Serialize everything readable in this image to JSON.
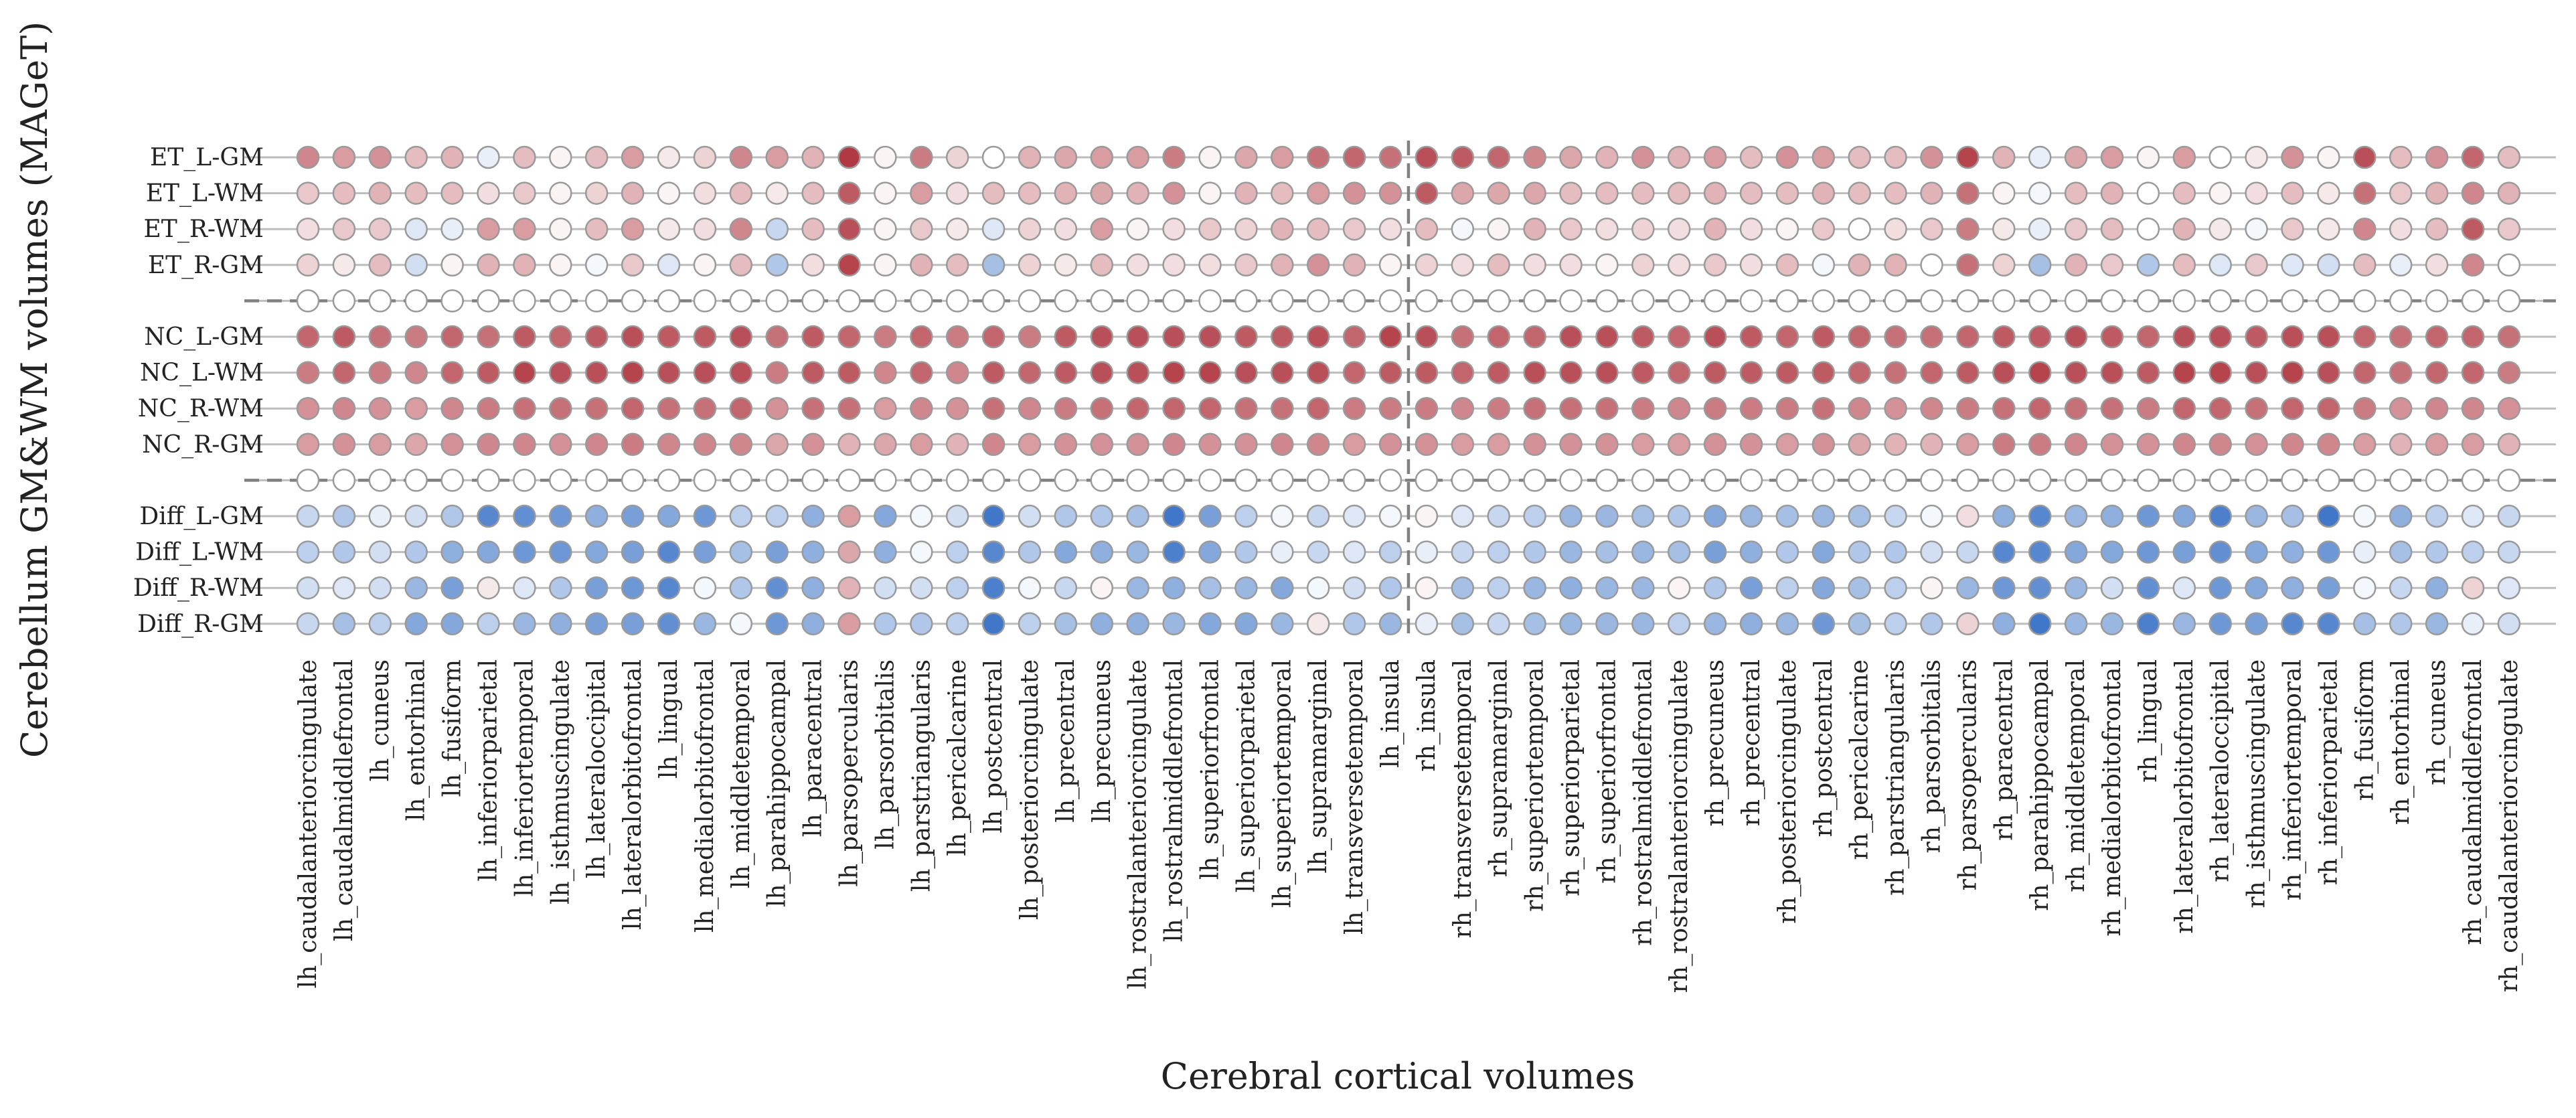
{
  "chart_data": {
    "type": "dot-matrix",
    "xlabel": "Cerebral cortical volumes",
    "ylabel": "Cerebellum GM&WM volumes (MAGeT)",
    "value_range": [
      -1,
      1
    ],
    "colormap": "diverging blue-white-red",
    "colors": {
      "negative": "#1f5fbf",
      "zero": "#ffffff",
      "positive": "#a8232e"
    },
    "columns": [
      "lh_caudalanteriorcingulate",
      "lh_caudalmiddlefrontal",
      "lh_cuneus",
      "lh_entorhinal",
      "lh_fusiform",
      "lh_inferiorparietal",
      "lh_inferiortemporal",
      "lh_isthmuscingulate",
      "lh_lateraloccipital",
      "lh_lateralorbitofrontal",
      "lh_lingual",
      "lh_medialorbitofrontal",
      "lh_middletemporal",
      "lh_parahippocampal",
      "lh_paracentral",
      "lh_parsopercularis",
      "lh_parsorbitalis",
      "lh_parstriangularis",
      "lh_pericalcarine",
      "lh_postcentral",
      "lh_posteriorcingulate",
      "lh_precentral",
      "lh_precuneus",
      "lh_rostralanteriorcingulate",
      "lh_rostralmiddlefrontal",
      "lh_superiorfrontal",
      "lh_superiorparietal",
      "lh_superiortemporal",
      "lh_supramarginal",
      "lh_transversetemporal",
      "lh_insula",
      "rh_insula",
      "rh_transversetemporal",
      "rh_supramarginal",
      "rh_superiortemporal",
      "rh_superiorparietal",
      "rh_superiorfrontal",
      "rh_rostralmiddlefrontal",
      "rh_rostralanteriorcingulate",
      "rh_precuneus",
      "rh_precentral",
      "rh_posteriorcingulate",
      "rh_postcentral",
      "rh_pericalcarine",
      "rh_parstriangularis",
      "rh_parsorbitalis",
      "rh_parsopercularis",
      "rh_paracentral",
      "rh_parahippocampal",
      "rh_middletemporal",
      "rh_medialorbitofrontal",
      "rh_lingual",
      "rh_lateralorbitofrontal",
      "rh_lateraloccipital",
      "rh_isthmuscingulate",
      "rh_inferiortemporal",
      "rh_inferiorparietal",
      "rh_fusiform",
      "rh_entorhinal",
      "rh_cuneus",
      "rh_caudalmiddlefrontal",
      "rh_caudalanteriorcingulate"
    ],
    "rows": [
      {
        "label": "ET_L-GM",
        "values": [
          0.55,
          0.45,
          0.5,
          0.3,
          0.35,
          -0.1,
          0.3,
          0.05,
          0.3,
          0.45,
          0.1,
          0.2,
          0.55,
          0.45,
          0.35,
          0.9,
          0.05,
          0.6,
          0.2,
          0.0,
          0.35,
          0.4,
          0.45,
          0.45,
          0.6,
          0.05,
          0.4,
          0.45,
          0.65,
          0.7,
          0.65,
          0.8,
          0.75,
          0.7,
          0.55,
          0.4,
          0.35,
          0.5,
          0.35,
          0.45,
          0.3,
          0.5,
          0.45,
          0.3,
          0.3,
          0.5,
          0.85,
          0.35,
          -0.1,
          0.4,
          0.45,
          0.05,
          0.45,
          0.0,
          0.1,
          0.5,
          0.05,
          0.8,
          0.3,
          0.5,
          0.7,
          0.3
        ]
      },
      {
        "label": "ET_L-WM",
        "values": [
          0.25,
          0.3,
          0.35,
          0.3,
          0.3,
          0.15,
          0.25,
          0.05,
          0.2,
          0.35,
          0.05,
          0.15,
          0.3,
          0.1,
          0.3,
          0.75,
          0.05,
          0.45,
          0.15,
          0.3,
          0.3,
          0.35,
          0.4,
          0.35,
          0.5,
          0.05,
          0.35,
          0.3,
          0.45,
          0.5,
          0.5,
          0.75,
          0.4,
          0.4,
          0.4,
          0.3,
          0.3,
          0.3,
          0.3,
          0.35,
          0.3,
          0.3,
          0.35,
          0.3,
          0.3,
          0.35,
          0.65,
          0.05,
          -0.05,
          0.3,
          0.35,
          0.0,
          0.3,
          0.05,
          0.15,
          0.3,
          0.1,
          0.65,
          0.25,
          0.35,
          0.55,
          0.35
        ]
      },
      {
        "label": "ET_R-WM",
        "values": [
          0.15,
          0.25,
          0.25,
          -0.15,
          -0.1,
          0.45,
          0.45,
          0.05,
          0.3,
          0.45,
          0.1,
          0.15,
          0.55,
          -0.25,
          0.3,
          0.8,
          0.05,
          0.25,
          0.1,
          -0.15,
          0.2,
          0.15,
          0.45,
          0.05,
          0.15,
          0.25,
          0.2,
          0.35,
          0.3,
          0.25,
          0.15,
          0.3,
          -0.05,
          0.05,
          0.35,
          0.25,
          0.15,
          0.2,
          0.15,
          0.35,
          0.15,
          0.05,
          0.25,
          0.0,
          0.15,
          0.25,
          0.6,
          0.1,
          -0.1,
          0.25,
          0.3,
          0.0,
          0.35,
          0.1,
          -0.05,
          0.25,
          0.1,
          0.55,
          0.15,
          0.3,
          0.75,
          0.25
        ]
      },
      {
        "label": "ET_R-GM",
        "values": [
          0.2,
          0.1,
          0.3,
          -0.2,
          0.05,
          0.35,
          0.35,
          0.05,
          -0.05,
          0.25,
          -0.15,
          0.05,
          0.3,
          -0.35,
          0.15,
          0.85,
          0.05,
          0.35,
          0.3,
          -0.4,
          0.2,
          0.1,
          0.3,
          0.15,
          0.15,
          0.15,
          0.25,
          0.35,
          0.5,
          0.35,
          0.05,
          0.2,
          0.15,
          0.3,
          0.15,
          0.15,
          0.05,
          0.2,
          0.15,
          0.25,
          0.15,
          0.3,
          -0.05,
          0.35,
          0.35,
          0.0,
          0.65,
          0.2,
          -0.4,
          0.35,
          0.25,
          -0.35,
          0.3,
          -0.15,
          0.25,
          -0.15,
          -0.2,
          0.3,
          -0.1,
          0.15,
          0.55,
          0.0
        ]
      },
      {
        "label": "",
        "values": [
          0,
          0,
          0,
          0,
          0,
          0,
          0,
          0,
          0,
          0,
          0,
          0,
          0,
          0,
          0,
          0,
          0,
          0,
          0,
          0,
          0,
          0,
          0,
          0,
          0,
          0,
          0,
          0,
          0,
          0,
          0,
          0,
          0,
          0,
          0,
          0,
          0,
          0,
          0,
          0,
          0,
          0,
          0,
          0,
          0,
          0,
          0,
          0,
          0,
          0,
          0,
          0,
          0,
          0,
          0,
          0,
          0,
          0,
          0,
          0,
          0,
          0
        ]
      },
      {
        "label": "NC_L-GM",
        "values": [
          0.7,
          0.75,
          0.65,
          0.6,
          0.7,
          0.65,
          0.75,
          0.7,
          0.75,
          0.8,
          0.75,
          0.75,
          0.8,
          0.65,
          0.75,
          0.7,
          0.6,
          0.7,
          0.6,
          0.7,
          0.6,
          0.75,
          0.8,
          0.8,
          0.8,
          0.8,
          0.75,
          0.75,
          0.8,
          0.7,
          0.85,
          0.8,
          0.65,
          0.7,
          0.7,
          0.8,
          0.8,
          0.75,
          0.7,
          0.8,
          0.75,
          0.7,
          0.75,
          0.7,
          0.65,
          0.65,
          0.7,
          0.75,
          0.75,
          0.8,
          0.75,
          0.7,
          0.8,
          0.8,
          0.75,
          0.8,
          0.8,
          0.7,
          0.65,
          0.7,
          0.7,
          0.65
        ]
      },
      {
        "label": "NC_L-WM",
        "values": [
          0.6,
          0.7,
          0.6,
          0.55,
          0.7,
          0.75,
          0.85,
          0.8,
          0.8,
          0.85,
          0.8,
          0.8,
          0.8,
          0.6,
          0.75,
          0.75,
          0.55,
          0.7,
          0.55,
          0.75,
          0.7,
          0.75,
          0.8,
          0.8,
          0.85,
          0.85,
          0.8,
          0.8,
          0.8,
          0.7,
          0.75,
          0.75,
          0.7,
          0.75,
          0.8,
          0.8,
          0.8,
          0.75,
          0.7,
          0.75,
          0.75,
          0.75,
          0.75,
          0.7,
          0.65,
          0.7,
          0.75,
          0.8,
          0.85,
          0.8,
          0.8,
          0.75,
          0.85,
          0.85,
          0.8,
          0.85,
          0.8,
          0.7,
          0.65,
          0.7,
          0.7,
          0.6
        ]
      },
      {
        "label": "NC_R-WM",
        "values": [
          0.5,
          0.55,
          0.5,
          0.45,
          0.55,
          0.6,
          0.65,
          0.65,
          0.65,
          0.7,
          0.65,
          0.65,
          0.7,
          0.5,
          0.65,
          0.65,
          0.45,
          0.55,
          0.5,
          0.65,
          0.55,
          0.6,
          0.65,
          0.7,
          0.7,
          0.7,
          0.65,
          0.65,
          0.7,
          0.6,
          0.6,
          0.6,
          0.55,
          0.6,
          0.65,
          0.65,
          0.65,
          0.6,
          0.55,
          0.6,
          0.6,
          0.6,
          0.65,
          0.55,
          0.5,
          0.55,
          0.6,
          0.65,
          0.7,
          0.65,
          0.65,
          0.6,
          0.7,
          0.7,
          0.65,
          0.7,
          0.7,
          0.6,
          0.5,
          0.55,
          0.55,
          0.5
        ]
      },
      {
        "label": "NC_R-GM",
        "values": [
          0.45,
          0.5,
          0.45,
          0.4,
          0.5,
          0.55,
          0.55,
          0.5,
          0.55,
          0.6,
          0.55,
          0.55,
          0.55,
          0.4,
          0.5,
          0.35,
          0.4,
          0.45,
          0.35,
          0.55,
          0.45,
          0.5,
          0.5,
          0.5,
          0.55,
          0.5,
          0.5,
          0.55,
          0.55,
          0.45,
          0.5,
          0.5,
          0.45,
          0.45,
          0.5,
          0.5,
          0.5,
          0.45,
          0.45,
          0.5,
          0.5,
          0.45,
          0.5,
          0.4,
          0.35,
          0.35,
          0.45,
          0.6,
          0.6,
          0.55,
          0.5,
          0.5,
          0.55,
          0.55,
          0.5,
          0.55,
          0.55,
          0.45,
          0.35,
          0.45,
          0.45,
          0.35
        ]
      },
      {
        "label": "",
        "values": [
          0,
          0,
          0,
          0,
          0,
          0,
          0,
          0,
          0,
          0,
          0,
          0,
          0,
          0,
          0,
          0,
          0,
          0,
          0,
          0,
          0,
          0,
          0,
          0,
          0,
          0,
          0,
          0,
          0,
          0,
          0,
          0,
          0,
          0,
          0,
          0,
          0,
          0,
          0,
          0,
          0,
          0,
          0,
          0,
          0,
          0,
          0,
          0,
          0,
          0,
          0,
          0,
          0,
          0,
          0,
          0,
          0,
          0,
          0,
          0,
          0,
          0
        ]
      },
      {
        "label": "Diff_L-GM",
        "values": [
          -0.25,
          -0.35,
          -0.1,
          -0.2,
          -0.35,
          -0.75,
          -0.7,
          -0.65,
          -0.5,
          -0.6,
          -0.55,
          -0.65,
          -0.3,
          -0.3,
          -0.5,
          0.45,
          -0.55,
          -0.05,
          -0.2,
          -0.85,
          -0.2,
          -0.35,
          -0.35,
          -0.4,
          -0.85,
          -0.6,
          -0.3,
          -0.05,
          -0.25,
          -0.15,
          -0.05,
          0.05,
          -0.15,
          -0.25,
          -0.3,
          -0.45,
          -0.45,
          -0.4,
          -0.35,
          -0.55,
          -0.45,
          -0.4,
          -0.45,
          -0.4,
          -0.25,
          -0.05,
          0.15,
          -0.5,
          -0.75,
          -0.45,
          -0.5,
          -0.65,
          -0.55,
          -0.8,
          -0.45,
          -0.4,
          -0.85,
          -0.05,
          -0.5,
          -0.3,
          -0.15,
          -0.25
        ]
      },
      {
        "label": "Diff_L-WM",
        "values": [
          -0.3,
          -0.35,
          -0.2,
          -0.35,
          -0.5,
          -0.55,
          -0.65,
          -0.65,
          -0.55,
          -0.6,
          -0.75,
          -0.6,
          -0.4,
          -0.6,
          -0.5,
          0.4,
          -0.5,
          -0.05,
          -0.3,
          -0.75,
          -0.35,
          -0.55,
          -0.5,
          -0.45,
          -0.8,
          -0.55,
          -0.35,
          -0.1,
          -0.25,
          -0.15,
          -0.3,
          -0.1,
          -0.25,
          -0.3,
          -0.35,
          -0.45,
          -0.4,
          -0.45,
          -0.4,
          -0.6,
          -0.5,
          -0.35,
          -0.55,
          -0.35,
          -0.35,
          -0.2,
          -0.25,
          -0.75,
          -0.75,
          -0.55,
          -0.55,
          -0.65,
          -0.6,
          -0.7,
          -0.55,
          -0.5,
          -0.65,
          -0.1,
          -0.4,
          -0.35,
          -0.3,
          -0.25
        ]
      },
      {
        "label": "Diff_R-WM",
        "values": [
          -0.2,
          -0.15,
          -0.2,
          -0.45,
          -0.6,
          0.1,
          -0.15,
          -0.35,
          -0.6,
          -0.65,
          -0.75,
          -0.05,
          -0.35,
          -0.7,
          -0.5,
          0.35,
          -0.2,
          -0.2,
          -0.3,
          -0.8,
          -0.05,
          -0.25,
          0.05,
          -0.45,
          -0.5,
          -0.4,
          -0.45,
          -0.55,
          -0.05,
          -0.2,
          -0.35,
          0.05,
          -0.4,
          -0.3,
          -0.45,
          -0.5,
          -0.45,
          -0.45,
          0.05,
          -0.35,
          -0.6,
          -0.3,
          -0.55,
          -0.4,
          -0.3,
          0.05,
          -0.45,
          -0.65,
          -0.7,
          -0.45,
          -0.2,
          -0.7,
          -0.15,
          -0.65,
          -0.55,
          -0.5,
          -0.6,
          -0.05,
          -0.25,
          -0.5,
          0.2,
          -0.15
        ]
      },
      {
        "label": "Diff_R-GM",
        "values": [
          -0.25,
          -0.4,
          -0.3,
          -0.55,
          -0.55,
          -0.3,
          -0.45,
          -0.5,
          -0.6,
          -0.6,
          -0.7,
          -0.45,
          -0.05,
          -0.65,
          -0.5,
          0.45,
          -0.35,
          -0.35,
          -0.3,
          -0.85,
          -0.3,
          -0.4,
          -0.5,
          -0.5,
          -0.45,
          -0.55,
          -0.55,
          -0.45,
          0.1,
          -0.35,
          -0.45,
          -0.1,
          -0.4,
          -0.25,
          -0.4,
          -0.45,
          -0.45,
          -0.45,
          -0.3,
          -0.45,
          -0.5,
          -0.45,
          -0.65,
          -0.4,
          -0.3,
          -0.35,
          0.2,
          -0.5,
          -0.85,
          -0.45,
          -0.45,
          -0.8,
          -0.45,
          -0.65,
          -0.6,
          -0.75,
          -0.75,
          -0.4,
          -0.35,
          -0.45,
          -0.1,
          -0.2
        ]
      }
    ]
  }
}
